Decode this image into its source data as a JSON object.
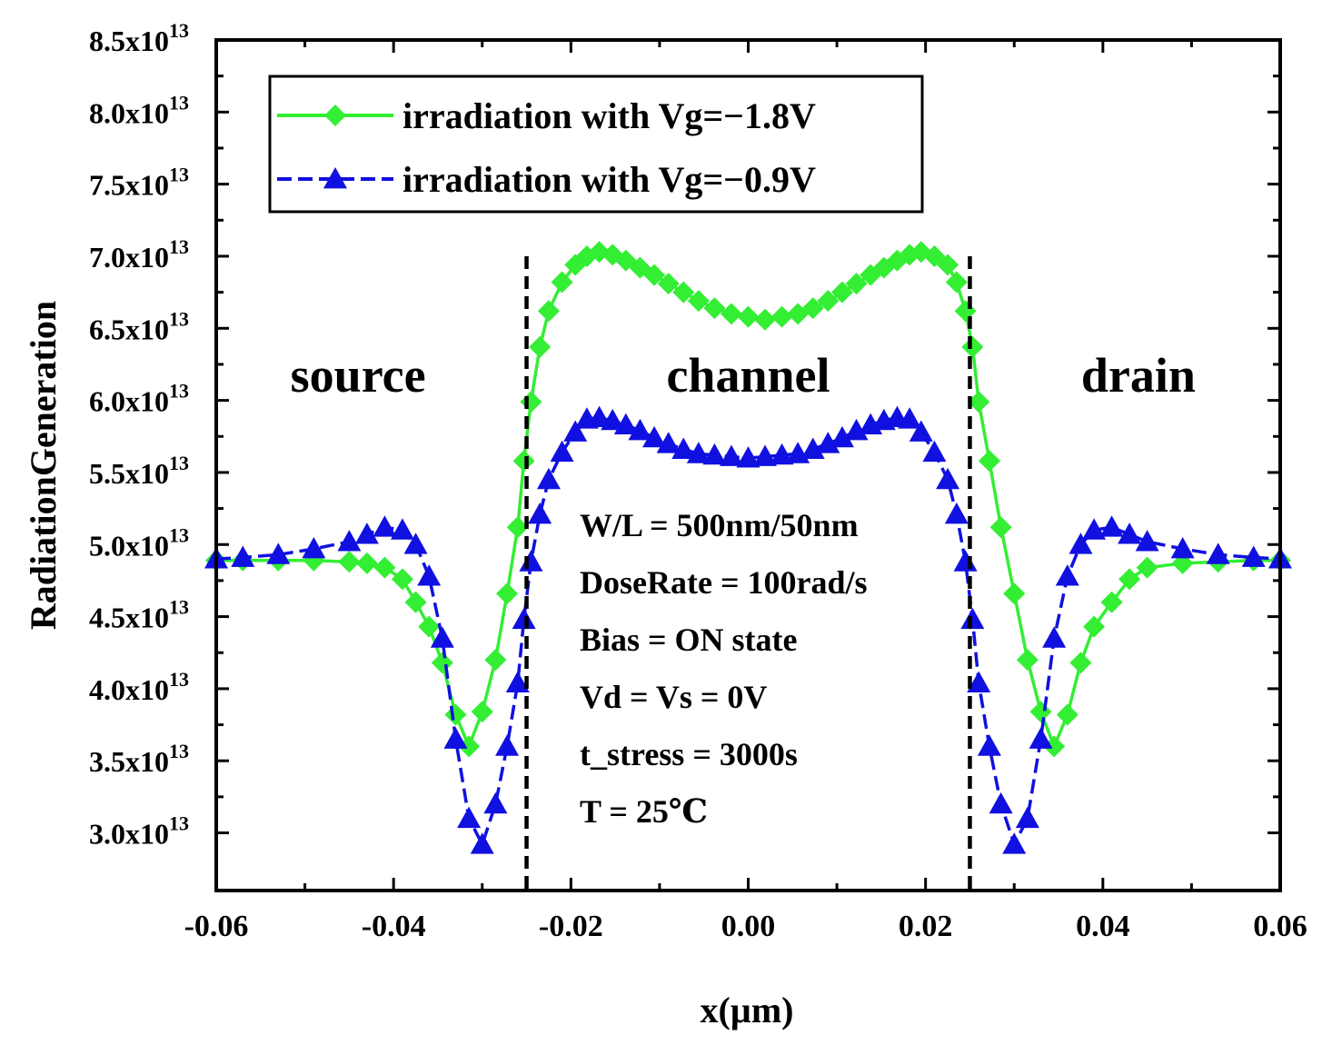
{
  "chart_data": {
    "type": "line",
    "xlabel": "x(µm)",
    "ylabel": "RadiationGeneration",
    "xlim": [
      -0.06,
      0.06
    ],
    "ylim": [
      26000000000000,
      85000000000000
    ],
    "x_ticks": [
      {
        "value": -0.06,
        "label": "-0.06"
      },
      {
        "value": -0.04,
        "label": "-0.04"
      },
      {
        "value": -0.02,
        "label": "-0.02"
      },
      {
        "value": 0.0,
        "label": "0.00"
      },
      {
        "value": 0.02,
        "label": "0.02"
      },
      {
        "value": 0.04,
        "label": "0.04"
      },
      {
        "value": 0.06,
        "label": "0.06"
      }
    ],
    "y_ticks": [
      {
        "value": 30000000000000,
        "mantissa": "3.0x10",
        "exp": "13"
      },
      {
        "value": 35000000000000,
        "mantissa": "3.5x10",
        "exp": "13"
      },
      {
        "value": 40000000000000,
        "mantissa": "4.0x10",
        "exp": "13"
      },
      {
        "value": 45000000000000,
        "mantissa": "4.5x10",
        "exp": "13"
      },
      {
        "value": 50000000000000,
        "mantissa": "5.0x10",
        "exp": "13"
      },
      {
        "value": 55000000000000,
        "mantissa": "5.5x10",
        "exp": "13"
      },
      {
        "value": 60000000000000,
        "mantissa": "6.0x10",
        "exp": "13"
      },
      {
        "value": 65000000000000,
        "mantissa": "6.5x10",
        "exp": "13"
      },
      {
        "value": 70000000000000,
        "mantissa": "7.0x10",
        "exp": "13"
      },
      {
        "value": 75000000000000,
        "mantissa": "7.5x10",
        "exp": "13"
      },
      {
        "value": 80000000000000,
        "mantissa": "8.0x10",
        "exp": "13"
      },
      {
        "value": 85000000000000,
        "mantissa": "8.5x10",
        "exp": "13"
      }
    ],
    "legend_position": "top-left",
    "grid": false,
    "region_boundaries": [
      -0.025,
      0.025
    ],
    "region_labels": [
      {
        "text": "source",
        "x": -0.044
      },
      {
        "text": "channel",
        "x": 0.0
      },
      {
        "text": "drain",
        "x": 0.044
      }
    ],
    "annotations": [
      "W/L = 500nm/50nm",
      "DoseRate = 100rad/s",
      "Bias = ON state",
      "Vd = Vs = 0V",
      "t_stress = 3000s",
      "T = 25℃"
    ],
    "series": [
      {
        "name": "irradiation with Vg=−1.8V",
        "color": "#33ee33",
        "marker": "diamond",
        "line": "solid",
        "x": [
          -0.06,
          -0.057,
          -0.053,
          -0.049,
          -0.045,
          -0.043,
          -0.041,
          -0.039,
          -0.0375,
          -0.036,
          -0.0345,
          -0.033,
          -0.0315,
          -0.03,
          -0.0285,
          -0.0272,
          -0.026,
          -0.0253,
          -0.0245,
          -0.0235,
          -0.0225,
          -0.021,
          -0.0195,
          -0.0182,
          -0.0168,
          -0.0153,
          -0.0138,
          -0.0122,
          -0.0106,
          -0.009,
          -0.0073,
          -0.0056,
          -0.0038,
          -0.0019,
          0.0,
          0.0019,
          0.0038,
          0.0056,
          0.0073,
          0.009,
          0.0106,
          0.0122,
          0.0138,
          0.0153,
          0.0168,
          0.0182,
          0.0195,
          0.021,
          0.0225,
          0.0235,
          0.0245,
          0.0253,
          0.026,
          0.0272,
          0.0285,
          0.03,
          0.0315,
          0.033,
          0.0345,
          0.036,
          0.0375,
          0.039,
          0.041,
          0.043,
          0.045,
          0.049,
          0.053,
          0.057,
          0.06
        ],
        "y": [
          48900000000000,
          48900000000000,
          48900000000000,
          48900000000000,
          48800000000000,
          48700000000000,
          48400000000000,
          47600000000000,
          46000000000000,
          44300000000000,
          41800000000000,
          38200000000000,
          36000000000000,
          38400000000000,
          42000000000000,
          46600000000000,
          51200000000000,
          55800000000000,
          59900000000000,
          63700000000000,
          66200000000000,
          68200000000000,
          69400000000000,
          70000000000000,
          70300000000000,
          70100000000000,
          69700000000000,
          69200000000000,
          68700000000000,
          68100000000000,
          67500000000000,
          66900000000000,
          66400000000000,
          66000000000000,
          65800000000000,
          65600000000000,
          65800000000000,
          66000000000000,
          66400000000000,
          66900000000000,
          67500000000000,
          68100000000000,
          68700000000000,
          69200000000000,
          69700000000000,
          70100000000000,
          70300000000000,
          70000000000000,
          69400000000000,
          68200000000000,
          66200000000000,
          63700000000000,
          59900000000000,
          55800000000000,
          51200000000000,
          46600000000000,
          42000000000000,
          38400000000000,
          36000000000000,
          38200000000000,
          41800000000000,
          44300000000000,
          46000000000000,
          47600000000000,
          48400000000000,
          48700000000000,
          48800000000000,
          48900000000000,
          48900000000000
        ]
      },
      {
        "name": "irradiation with Vg=−0.9V",
        "color": "#1010e0",
        "marker": "triangle",
        "line": "dashed",
        "x": [
          -0.06,
          -0.057,
          -0.053,
          -0.049,
          -0.045,
          -0.043,
          -0.041,
          -0.039,
          -0.0375,
          -0.036,
          -0.0345,
          -0.033,
          -0.0315,
          -0.03,
          -0.0285,
          -0.0272,
          -0.026,
          -0.0253,
          -0.0245,
          -0.0235,
          -0.0225,
          -0.021,
          -0.0195,
          -0.0182,
          -0.0168,
          -0.0153,
          -0.0138,
          -0.0122,
          -0.0106,
          -0.009,
          -0.0073,
          -0.0056,
          -0.0038,
          -0.0019,
          0.0,
          0.0019,
          0.0038,
          0.0056,
          0.0073,
          0.009,
          0.0106,
          0.0122,
          0.0138,
          0.0153,
          0.0168,
          0.0182,
          0.0195,
          0.021,
          0.0225,
          0.0235,
          0.0245,
          0.0253,
          0.026,
          0.0272,
          0.0285,
          0.03,
          0.0315,
          0.033,
          0.0345,
          0.036,
          0.0375,
          0.039,
          0.041,
          0.043,
          0.045,
          0.049,
          0.053,
          0.057,
          0.06
        ],
        "y": [
          49000000000000,
          49100000000000,
          49300000000000,
          49700000000000,
          50200000000000,
          50700000000000,
          51200000000000,
          51000000000000,
          50000000000000,
          47800000000000,
          43500000000000,
          36500000000000,
          31000000000000,
          29200000000000,
          32000000000000,
          36000000000000,
          40400000000000,
          44800000000000,
          48800000000000,
          52100000000000,
          54500000000000,
          56400000000000,
          57800000000000,
          58700000000000,
          58800000000000,
          58600000000000,
          58300000000000,
          57900000000000,
          57400000000000,
          57000000000000,
          56600000000000,
          56300000000000,
          56200000000000,
          56100000000000,
          56000000000000,
          56100000000000,
          56200000000000,
          56300000000000,
          56600000000000,
          57000000000000,
          57400000000000,
          57900000000000,
          58300000000000,
          58600000000000,
          58800000000000,
          58700000000000,
          57800000000000,
          56400000000000,
          54500000000000,
          52100000000000,
          48800000000000,
          44800000000000,
          40400000000000,
          36000000000000,
          32000000000000,
          29200000000000,
          31000000000000,
          36500000000000,
          43500000000000,
          47800000000000,
          50000000000000,
          51000000000000,
          51200000000000,
          50700000000000,
          50200000000000,
          49700000000000,
          49300000000000,
          49100000000000,
          49000000000000
        ]
      }
    ]
  }
}
